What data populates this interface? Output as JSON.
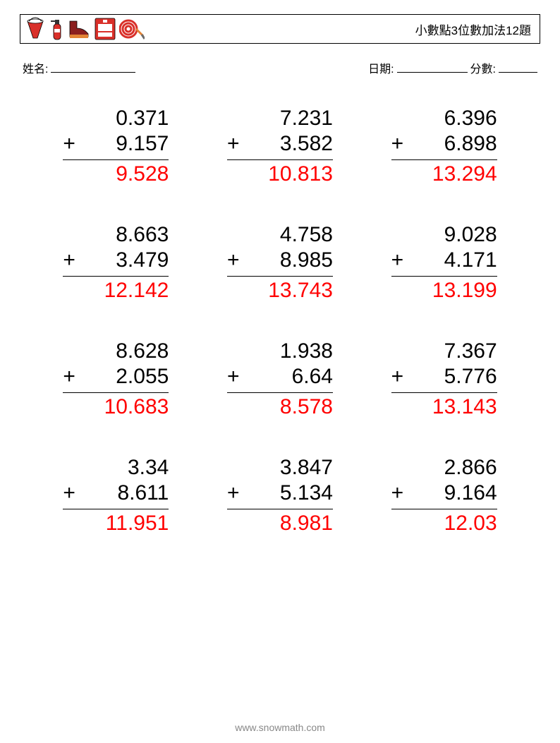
{
  "header": {
    "title": "小數點3位數加法12題"
  },
  "info": {
    "name_label": "姓名:",
    "date_label": "日期:",
    "score_label": "分數:"
  },
  "style": {
    "answer_color": "#ff0000",
    "text_color": "#000000",
    "footer_color": "#888888",
    "font_size_problem": 30,
    "cols": 3,
    "rows": 4
  },
  "icons": {
    "red": "#d9302a",
    "dark_red": "#8b1e1e",
    "orange": "#e28335",
    "gray": "#6b6b6b"
  },
  "problems": [
    {
      "a": "0.371",
      "op": "+",
      "b": "9.157",
      "ans": "9.528"
    },
    {
      "a": "7.231",
      "op": "+",
      "b": "3.582",
      "ans": "10.813"
    },
    {
      "a": "6.396",
      "op": "+",
      "b": "6.898",
      "ans": "13.294"
    },
    {
      "a": "8.663",
      "op": "+",
      "b": "3.479",
      "ans": "12.142"
    },
    {
      "a": "4.758",
      "op": "+",
      "b": "8.985",
      "ans": "13.743"
    },
    {
      "a": "9.028",
      "op": "+",
      "b": "4.171",
      "ans": "13.199"
    },
    {
      "a": "8.628",
      "op": "+",
      "b": "2.055",
      "ans": "10.683"
    },
    {
      "a": "1.938",
      "op": "+",
      "b": "6.64",
      "ans": "8.578"
    },
    {
      "a": "7.367",
      "op": "+",
      "b": "5.776",
      "ans": "13.143"
    },
    {
      "a": "3.34",
      "op": "+",
      "b": "8.611",
      "ans": "11.951"
    },
    {
      "a": "3.847",
      "op": "+",
      "b": "5.134",
      "ans": "8.981"
    },
    {
      "a": "2.866",
      "op": "+",
      "b": "9.164",
      "ans": "12.03"
    }
  ],
  "footer": {
    "url": "www.snowmath.com"
  }
}
